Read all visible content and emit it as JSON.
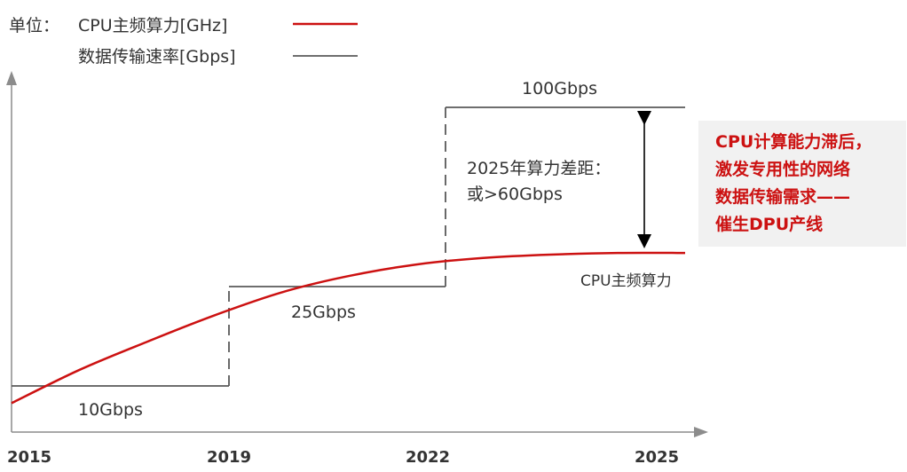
{
  "legend": {
    "unit_label": "单位：",
    "cpu_label": "CPU主频算力[GHz]",
    "net_label": "数据传输速率[Gbps]"
  },
  "colors": {
    "cpu_line": "#cc1111",
    "net_line": "#595959",
    "callout_text": "#cc1111",
    "callout_bg": "#f1f1f1",
    "axis": "#8c8c8c"
  },
  "chart_data": {
    "type": "line",
    "title": "",
    "xlabel": "",
    "ylabel": "",
    "x_ticks": [
      "2015",
      "2019",
      "2022",
      "2025"
    ],
    "xlim": [
      2015,
      2025
    ],
    "series": [
      {
        "name": "CPU主频算力[GHz]",
        "style": "smooth curve",
        "points": [
          [
            2015,
            0.1
          ],
          [
            2016,
            0.3
          ],
          [
            2017,
            0.47
          ],
          [
            2018,
            0.63
          ],
          [
            2019,
            0.77
          ],
          [
            2020,
            0.87
          ],
          [
            2021,
            0.94
          ],
          [
            2022,
            0.98
          ],
          [
            2023,
            1.0
          ],
          [
            2024,
            1.01
          ],
          [
            2025,
            1.01
          ]
        ]
      },
      {
        "name": "数据传输速率[Gbps]",
        "style": "step",
        "segments": [
          {
            "from": 2015,
            "to": 2019,
            "value": 10,
            "label": "10Gbps"
          },
          {
            "from": 2019,
            "to": 2022,
            "value": 25,
            "label": "25Gbps"
          },
          {
            "from": 2022,
            "to": 2025,
            "value": 100,
            "label": "100Gbps"
          }
        ]
      }
    ],
    "annotations": {
      "cpu_end_label": "CPU主频算力",
      "gap_line1": "2025年算力差距：",
      "gap_line2": "或>60Gbps",
      "callout": [
        "CPU计算能力滞后，",
        "激发专用性的网络",
        "数据传输需求——",
        "催生DPU产线"
      ]
    }
  }
}
